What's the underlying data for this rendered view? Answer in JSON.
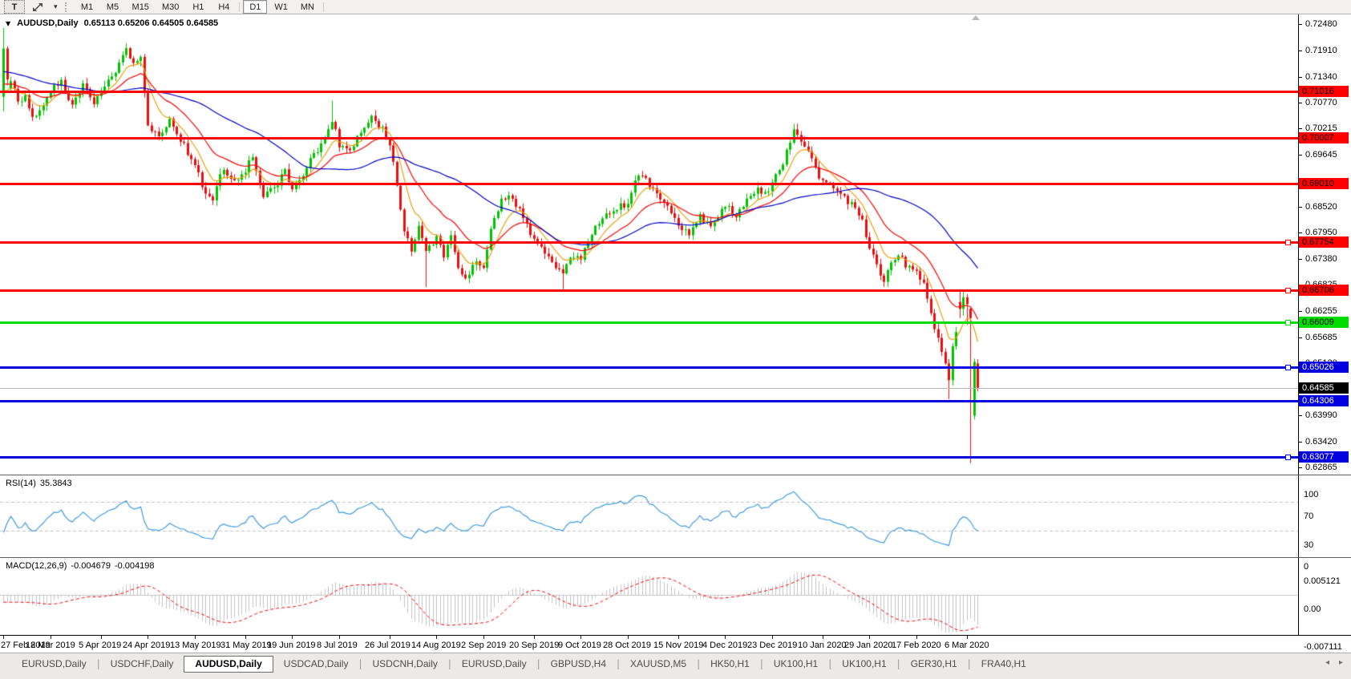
{
  "icons": {
    "chart_dropdown": "▼",
    "small_dropdown": "▾",
    "tab_separator": "|",
    "nav_left": "◂",
    "nav_right": "▸"
  },
  "toolbar": {
    "text_tool_label": "T",
    "timeframes": [
      "M1",
      "M5",
      "M15",
      "M30",
      "H1",
      "H4",
      "D1",
      "W1",
      "MN"
    ],
    "active_timeframe": "D1",
    "dividers_after": [
      "H4",
      "MN"
    ]
  },
  "chart": {
    "symbol": "AUDUSD,Daily",
    "ohlc_text": "0.65113 0.65206 0.64505 0.64585"
  },
  "chart_data": {
    "type": "candlestick",
    "symbol": "AUDUSD",
    "timeframe": "Daily",
    "current_ohlc": {
      "open": 0.65113,
      "high": 0.65206,
      "low": 0.64505,
      "close": 0.64585
    },
    "price_axis_range": [
      0.6272,
      0.7262
    ],
    "price_axis_ticks": [
      "0.72480",
      "0.71910",
      "0.71340",
      "0.70770",
      "0.70215",
      "0.69645",
      "0.68520",
      "0.67950",
      "0.67380",
      "0.66825",
      "0.66255",
      "0.65685",
      "0.65120",
      "0.63990",
      "0.63420",
      "0.62865"
    ],
    "horizontal_lines": [
      {
        "label": "0.71016",
        "price": 0.71016,
        "color": "#FF0000",
        "text_color": "#000000",
        "handle": false
      },
      {
        "label": "0.70007",
        "price": 0.70007,
        "color": "#FF0000",
        "text_color": "#000000",
        "handle": false
      },
      {
        "label": "0.69010",
        "price": 0.6901,
        "color": "#FF0000",
        "text_color": "#000000",
        "handle": false
      },
      {
        "label": "0.67754",
        "price": 0.67754,
        "color": "#FF0000",
        "text_color": "#000000",
        "handle": true
      },
      {
        "label": "0.66706",
        "price": 0.66706,
        "color": "#FF0000",
        "text_color": "#000000",
        "handle": true
      },
      {
        "label": "0.66009",
        "price": 0.66009,
        "color": "#00DC00",
        "text_color": "#000000",
        "handle": true
      },
      {
        "label": "0.65026",
        "price": 0.65026,
        "color": "#0000E0",
        "text_color": "#FFFFFF",
        "handle": true
      },
      {
        "label": "0.64306",
        "price": 0.64306,
        "color": "#0000E0",
        "text_color": "#FFFFFF",
        "handle": false
      },
      {
        "label": "0.63077",
        "price": 0.63077,
        "color": "#0000E0",
        "text_color": "#FFFFFF",
        "handle": true
      }
    ],
    "current_price": {
      "label": "0.64585",
      "value": 0.64585
    },
    "date_ticks": [
      [
        0,
        "27 Feb 2019"
      ],
      [
        13,
        "18 Mar 2019"
      ],
      [
        27,
        "5 Apr 2019"
      ],
      [
        40,
        "24 Apr 2019"
      ],
      [
        53,
        "13 May 2019"
      ],
      [
        67,
        "31 May 2019"
      ],
      [
        80,
        "19 Jun 2019"
      ],
      [
        93,
        "8 Jul 2019"
      ],
      [
        107,
        "26 Jul 2019"
      ],
      [
        120,
        "14 Aug 2019"
      ],
      [
        133,
        "2 Sep 2019"
      ],
      [
        147,
        "20 Sep 2019"
      ],
      [
        160,
        "9 Oct 2019"
      ],
      [
        173,
        "28 Oct 2019"
      ],
      [
        187,
        "15 Nov 2019"
      ],
      [
        200,
        "4 Dec 2019"
      ],
      [
        213,
        "23 Dec 2019"
      ],
      [
        227,
        "10 Jan 2020"
      ],
      [
        240,
        "29 Jan 2020"
      ],
      [
        253,
        "17 Feb 2020"
      ],
      [
        267,
        "6 Mar 2020"
      ]
    ],
    "candle_count": 271,
    "preroll": 50,
    "noise": 0.0016,
    "anchors_close": [
      [
        -50,
        0.7185
      ],
      [
        -30,
        0.7165
      ],
      [
        -15,
        0.7135
      ],
      [
        -5,
        0.7112
      ],
      [
        0,
        0.7095
      ],
      [
        2,
        0.7125
      ],
      [
        4,
        0.7078
      ],
      [
        6,
        0.7092
      ],
      [
        8,
        0.7042
      ],
      [
        10,
        0.7062
      ],
      [
        13,
        0.7105
      ],
      [
        16,
        0.7124
      ],
      [
        19,
        0.7072
      ],
      [
        22,
        0.7116
      ],
      [
        25,
        0.7082
      ],
      [
        27,
        0.7108
      ],
      [
        30,
        0.7136
      ],
      [
        34,
        0.7192
      ],
      [
        36,
        0.7158
      ],
      [
        38,
        0.7176
      ],
      [
        40,
        0.7022
      ],
      [
        43,
        0.7012
      ],
      [
        46,
        0.7036
      ],
      [
        49,
        0.6996
      ],
      [
        53,
        0.6942
      ],
      [
        56,
        0.6882
      ],
      [
        58,
        0.6872
      ],
      [
        61,
        0.6936
      ],
      [
        64,
        0.6906
      ],
      [
        67,
        0.6932
      ],
      [
        69,
        0.6958
      ],
      [
        72,
        0.6872
      ],
      [
        75,
        0.6892
      ],
      [
        78,
        0.6926
      ],
      [
        80,
        0.6888
      ],
      [
        83,
        0.6926
      ],
      [
        86,
        0.6962
      ],
      [
        89,
        0.7006
      ],
      [
        91,
        0.7042
      ],
      [
        93,
        0.6988
      ],
      [
        96,
        0.6976
      ],
      [
        99,
        0.7016
      ],
      [
        102,
        0.7042
      ],
      [
        105,
        0.7026
      ],
      [
        107,
        0.6982
      ],
      [
        109,
        0.6902
      ],
      [
        111,
        0.6802
      ],
      [
        113,
        0.6756
      ],
      [
        115,
        0.6806
      ],
      [
        117,
        0.6762
      ],
      [
        120,
        0.6782
      ],
      [
        122,
        0.6746
      ],
      [
        124,
        0.6786
      ],
      [
        126,
        0.6712
      ],
      [
        128,
        0.6692
      ],
      [
        130,
        0.6732
      ],
      [
        133,
        0.6716
      ],
      [
        135,
        0.6806
      ],
      [
        138,
        0.6862
      ],
      [
        140,
        0.6882
      ],
      [
        143,
        0.6846
      ],
      [
        145,
        0.6812
      ],
      [
        147,
        0.6776
      ],
      [
        150,
        0.6756
      ],
      [
        152,
        0.6736
      ],
      [
        155,
        0.6702
      ],
      [
        157,
        0.6746
      ],
      [
        160,
        0.6742
      ],
      [
        162,
        0.6776
      ],
      [
        165,
        0.6822
      ],
      [
        168,
        0.6842
      ],
      [
        171,
        0.6852
      ],
      [
        173,
        0.6856
      ],
      [
        176,
        0.6926
      ],
      [
        179,
        0.6896
      ],
      [
        182,
        0.6866
      ],
      [
        185,
        0.6842
      ],
      [
        187,
        0.6816
      ],
      [
        190,
        0.6792
      ],
      [
        193,
        0.6832
      ],
      [
        196,
        0.6802
      ],
      [
        198,
        0.6826
      ],
      [
        200,
        0.6852
      ],
      [
        203,
        0.6832
      ],
      [
        206,
        0.6866
      ],
      [
        209,
        0.6886
      ],
      [
        211,
        0.6876
      ],
      [
        213,
        0.6902
      ],
      [
        216,
        0.6946
      ],
      [
        219,
        0.7022
      ],
      [
        222,
        0.6986
      ],
      [
        225,
        0.6932
      ],
      [
        227,
        0.6906
      ],
      [
        230,
        0.6896
      ],
      [
        233,
        0.6872
      ],
      [
        236,
        0.6846
      ],
      [
        238,
        0.6822
      ],
      [
        240,
        0.6762
      ],
      [
        242,
        0.6722
      ],
      [
        244,
        0.6696
      ],
      [
        246,
        0.6732
      ],
      [
        248,
        0.6752
      ],
      [
        250,
        0.6722
      ],
      [
        253,
        0.6716
      ],
      [
        255,
        0.6682
      ],
      [
        257,
        0.6622
      ],
      [
        259,
        0.6562
      ],
      [
        261,
        0.6516
      ],
      [
        262,
        0.6472
      ],
      [
        263,
        0.6546
      ],
      [
        264,
        0.6586
      ],
      [
        265,
        0.663
      ],
      [
        266,
        0.6655
      ],
      [
        267,
        0.664
      ],
      [
        268,
        0.661
      ],
      [
        269,
        0.6515
      ],
      [
        270,
        0.64585
      ]
    ],
    "candle_overrides": {
      "0": [
        0.709,
        0.724,
        0.7058,
        0.7195
      ],
      "1": [
        0.7195,
        0.72,
        0.7115,
        0.7128
      ],
      "34": [
        null,
        0.7206,
        null,
        null
      ],
      "91": [
        null,
        0.7082,
        null,
        null
      ],
      "117": [
        null,
        null,
        0.6677,
        null
      ],
      "155": [
        null,
        null,
        0.667,
        null
      ],
      "219": [
        null,
        0.7032,
        null,
        null
      ],
      "262": [
        null,
        null,
        0.6434,
        null
      ],
      "265": [
        0.6645,
        0.667,
        0.661,
        0.663
      ],
      "266": [
        0.663,
        0.6672,
        0.6615,
        0.6655
      ],
      "267": [
        0.6655,
        0.6662,
        0.6595,
        0.664
      ],
      "268": [
        0.663,
        0.6632,
        0.6295,
        0.661
      ],
      "269": [
        0.6398,
        0.6522,
        0.639,
        0.6515
      ],
      "270": [
        0.65113,
        0.65206,
        0.64505,
        0.64585
      ]
    },
    "moving_averages": [
      {
        "name": "fast",
        "type": "ema",
        "period": 8,
        "color": "#E8A013"
      },
      {
        "name": "mid",
        "type": "ema",
        "period": 20,
        "color": "#FF0000"
      },
      {
        "name": "slow",
        "type": "sma",
        "period": 45,
        "color": "#0000C8"
      }
    ],
    "indicators": {
      "rsi": {
        "name_label": "RSI(14)",
        "value": "35.3843",
        "period": 14,
        "levels": [
          70,
          30
        ],
        "scale": [
          0,
          100
        ],
        "axis_labels": [
          [
            "100",
            100
          ],
          [
            "70",
            70
          ],
          [
            "30",
            30
          ],
          [
            "0",
            0
          ]
        ]
      },
      "macd": {
        "name_label": "MACD(12,26,9)",
        "macd_value": "-0.004679",
        "signal_value": "-0.004198",
        "fast": 12,
        "slow": 26,
        "signal": 9,
        "axis_labels": [
          [
            "0.005121",
            0.005121
          ],
          [
            "0.00",
            0
          ],
          [
            "-0.007111",
            -0.007111
          ]
        ]
      }
    }
  },
  "tabs": {
    "items": [
      "EURUSD,Daily",
      "USDCHF,Daily",
      "AUDUSD,Daily",
      "USDCAD,Daily",
      "USDCNH,Daily",
      "EURUSD,Daily",
      "GBPUSD,H4",
      "XAUUSD,M5",
      "HK50,H1",
      "UK100,H1",
      "UK100,H1",
      "GER30,H1",
      "FRA40,H1"
    ],
    "active_index": 2
  },
  "colors": {
    "bull": "#00C400",
    "bear": "#EA0F0F",
    "rsi_line": "#3F9BE0",
    "rsi_level_dash": "#C0C0C0",
    "macd_hist": "#C4C4C4",
    "macd_signal": "#FF0000",
    "current_line": "#B8B8B8",
    "current_box_bg": "#000000",
    "current_box_text": "#FFFFFF"
  }
}
